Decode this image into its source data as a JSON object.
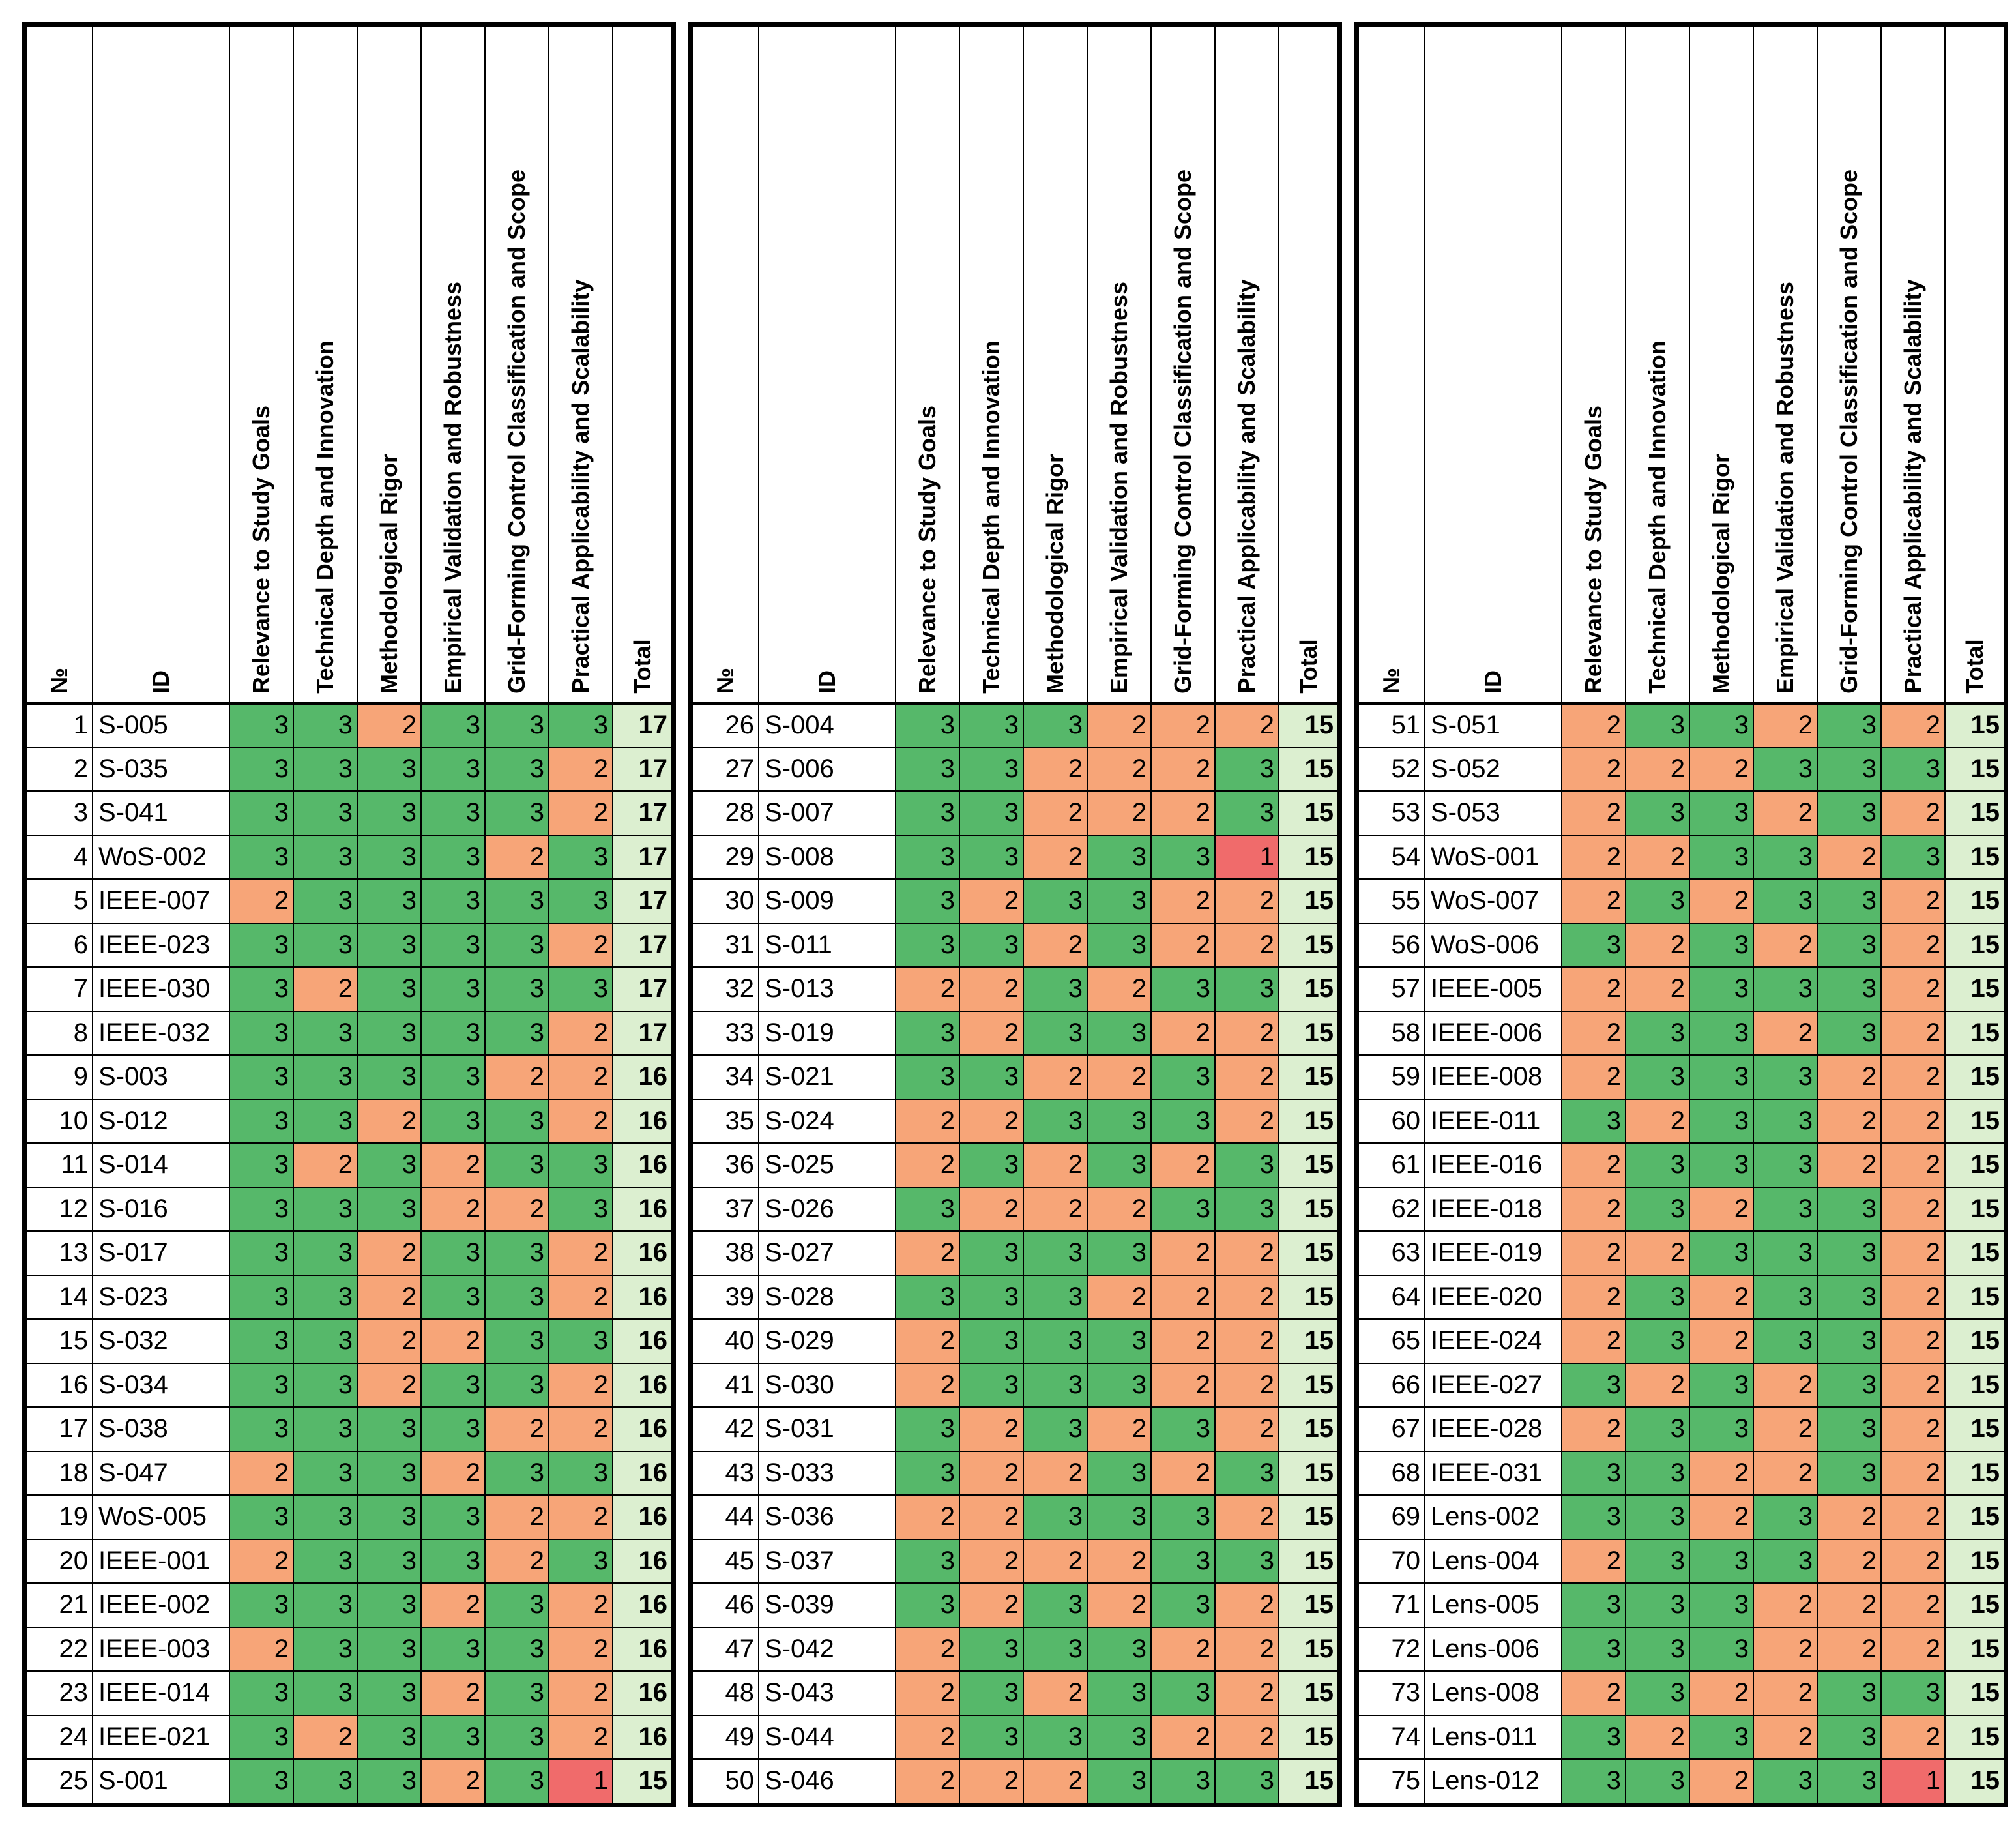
{
  "headers": {
    "no": "№",
    "id": "ID",
    "criteria": [
      "Relevance to Study Goals",
      "Technical Depth and Innovation",
      "Methodological Rigor",
      "Empirical Validation and Robustness",
      "Grid-Forming Control Classification and Scope",
      "Practical Applicability and Scalability"
    ],
    "total": "Total"
  },
  "score_colors": {
    "3": "#56b86a",
    "2": "#f7a578",
    "1": "#f06b6b",
    "total": "#dcefd0"
  },
  "tables": [
    {
      "rows": [
        {
          "no": "1",
          "id": "S-005",
          "s": [
            "3",
            "3",
            "2",
            "3",
            "3",
            "3"
          ],
          "total": "17"
        },
        {
          "no": "2",
          "id": "S-035",
          "s": [
            "3",
            "3",
            "3",
            "3",
            "3",
            "2"
          ],
          "total": "17"
        },
        {
          "no": "3",
          "id": "S-041",
          "s": [
            "3",
            "3",
            "3",
            "3",
            "3",
            "2"
          ],
          "total": "17"
        },
        {
          "no": "4",
          "id": "WoS-002",
          "s": [
            "3",
            "3",
            "3",
            "3",
            "2",
            "3"
          ],
          "total": "17"
        },
        {
          "no": "5",
          "id": "IEEE-007",
          "s": [
            "2",
            "3",
            "3",
            "3",
            "3",
            "3"
          ],
          "total": "17"
        },
        {
          "no": "6",
          "id": "IEEE-023",
          "s": [
            "3",
            "3",
            "3",
            "3",
            "3",
            "2"
          ],
          "total": "17"
        },
        {
          "no": "7",
          "id": "IEEE-030",
          "s": [
            "3",
            "2",
            "3",
            "3",
            "3",
            "3"
          ],
          "total": "17"
        },
        {
          "no": "8",
          "id": "IEEE-032",
          "s": [
            "3",
            "3",
            "3",
            "3",
            "3",
            "2"
          ],
          "total": "17"
        },
        {
          "no": "9",
          "id": "S-003",
          "s": [
            "3",
            "3",
            "3",
            "3",
            "2",
            "2"
          ],
          "total": "16"
        },
        {
          "no": "10",
          "id": "S-012",
          "s": [
            "3",
            "3",
            "2",
            "3",
            "3",
            "2"
          ],
          "total": "16"
        },
        {
          "no": "11",
          "id": "S-014",
          "s": [
            "3",
            "2",
            "3",
            "2",
            "3",
            "3"
          ],
          "total": "16"
        },
        {
          "no": "12",
          "id": "S-016",
          "s": [
            "3",
            "3",
            "3",
            "2",
            "2",
            "3"
          ],
          "total": "16"
        },
        {
          "no": "13",
          "id": "S-017",
          "s": [
            "3",
            "3",
            "2",
            "3",
            "3",
            "2"
          ],
          "total": "16"
        },
        {
          "no": "14",
          "id": "S-023",
          "s": [
            "3",
            "3",
            "2",
            "3",
            "3",
            "2"
          ],
          "total": "16"
        },
        {
          "no": "15",
          "id": "S-032",
          "s": [
            "3",
            "3",
            "2",
            "2",
            "3",
            "3"
          ],
          "total": "16"
        },
        {
          "no": "16",
          "id": "S-034",
          "s": [
            "3",
            "3",
            "2",
            "3",
            "3",
            "2"
          ],
          "total": "16"
        },
        {
          "no": "17",
          "id": "S-038",
          "s": [
            "3",
            "3",
            "3",
            "3",
            "2",
            "2"
          ],
          "total": "16"
        },
        {
          "no": "18",
          "id": "S-047",
          "s": [
            "2",
            "3",
            "3",
            "2",
            "3",
            "3"
          ],
          "total": "16"
        },
        {
          "no": "19",
          "id": "WoS-005",
          "s": [
            "3",
            "3",
            "3",
            "3",
            "2",
            "2"
          ],
          "total": "16"
        },
        {
          "no": "20",
          "id": "IEEE-001",
          "s": [
            "2",
            "3",
            "3",
            "3",
            "2",
            "3"
          ],
          "total": "16"
        },
        {
          "no": "21",
          "id": "IEEE-002",
          "s": [
            "3",
            "3",
            "3",
            "2",
            "3",
            "2"
          ],
          "total": "16"
        },
        {
          "no": "22",
          "id": "IEEE-003",
          "s": [
            "2",
            "3",
            "3",
            "3",
            "3",
            "2"
          ],
          "total": "16"
        },
        {
          "no": "23",
          "id": "IEEE-014",
          "s": [
            "3",
            "3",
            "3",
            "2",
            "3",
            "2"
          ],
          "total": "16"
        },
        {
          "no": "24",
          "id": "IEEE-021",
          "s": [
            "3",
            "2",
            "3",
            "3",
            "3",
            "2"
          ],
          "total": "16"
        },
        {
          "no": "25",
          "id": "S-001",
          "s": [
            "3",
            "3",
            "3",
            "2",
            "3",
            "1"
          ],
          "total": "15"
        }
      ]
    },
    {
      "rows": [
        {
          "no": "26",
          "id": "S-004",
          "s": [
            "3",
            "3",
            "3",
            "2",
            "2",
            "2"
          ],
          "total": "15"
        },
        {
          "no": "27",
          "id": "S-006",
          "s": [
            "3",
            "3",
            "2",
            "2",
            "2",
            "3"
          ],
          "total": "15"
        },
        {
          "no": "28",
          "id": "S-007",
          "s": [
            "3",
            "3",
            "2",
            "2",
            "2",
            "3"
          ],
          "total": "15"
        },
        {
          "no": "29",
          "id": "S-008",
          "s": [
            "3",
            "3",
            "2",
            "3",
            "3",
            "1"
          ],
          "total": "15"
        },
        {
          "no": "30",
          "id": "S-009",
          "s": [
            "3",
            "2",
            "3",
            "3",
            "2",
            "2"
          ],
          "total": "15"
        },
        {
          "no": "31",
          "id": "S-011",
          "s": [
            "3",
            "3",
            "2",
            "3",
            "2",
            "2"
          ],
          "total": "15"
        },
        {
          "no": "32",
          "id": "S-013",
          "s": [
            "2",
            "2",
            "3",
            "2",
            "3",
            "3"
          ],
          "total": "15"
        },
        {
          "no": "33",
          "id": "S-019",
          "s": [
            "3",
            "2",
            "3",
            "3",
            "2",
            "2"
          ],
          "total": "15"
        },
        {
          "no": "34",
          "id": "S-021",
          "s": [
            "3",
            "3",
            "2",
            "2",
            "3",
            "2"
          ],
          "total": "15"
        },
        {
          "no": "35",
          "id": "S-024",
          "s": [
            "2",
            "2",
            "3",
            "3",
            "3",
            "2"
          ],
          "total": "15"
        },
        {
          "no": "36",
          "id": "S-025",
          "s": [
            "2",
            "3",
            "2",
            "3",
            "2",
            "3"
          ],
          "total": "15"
        },
        {
          "no": "37",
          "id": "S-026",
          "s": [
            "3",
            "2",
            "2",
            "2",
            "3",
            "3"
          ],
          "total": "15"
        },
        {
          "no": "38",
          "id": "S-027",
          "s": [
            "2",
            "3",
            "3",
            "3",
            "2",
            "2"
          ],
          "total": "15"
        },
        {
          "no": "39",
          "id": "S-028",
          "s": [
            "3",
            "3",
            "3",
            "2",
            "2",
            "2"
          ],
          "total": "15"
        },
        {
          "no": "40",
          "id": "S-029",
          "s": [
            "2",
            "3",
            "3",
            "3",
            "2",
            "2"
          ],
          "total": "15"
        },
        {
          "no": "41",
          "id": "S-030",
          "s": [
            "2",
            "3",
            "3",
            "3",
            "2",
            "2"
          ],
          "total": "15"
        },
        {
          "no": "42",
          "id": "S-031",
          "s": [
            "3",
            "2",
            "3",
            "2",
            "3",
            "2"
          ],
          "total": "15"
        },
        {
          "no": "43",
          "id": "S-033",
          "s": [
            "3",
            "2",
            "2",
            "3",
            "2",
            "3"
          ],
          "total": "15"
        },
        {
          "no": "44",
          "id": "S-036",
          "s": [
            "2",
            "2",
            "3",
            "3",
            "3",
            "2"
          ],
          "total": "15"
        },
        {
          "no": "45",
          "id": "S-037",
          "s": [
            "3",
            "2",
            "2",
            "2",
            "3",
            "3"
          ],
          "total": "15"
        },
        {
          "no": "46",
          "id": "S-039",
          "s": [
            "3",
            "2",
            "3",
            "2",
            "3",
            "2"
          ],
          "total": "15"
        },
        {
          "no": "47",
          "id": "S-042",
          "s": [
            "2",
            "3",
            "3",
            "3",
            "2",
            "2"
          ],
          "total": "15"
        },
        {
          "no": "48",
          "id": "S-043",
          "s": [
            "2",
            "3",
            "2",
            "3",
            "3",
            "2"
          ],
          "total": "15"
        },
        {
          "no": "49",
          "id": "S-044",
          "s": [
            "2",
            "3",
            "3",
            "3",
            "2",
            "2"
          ],
          "total": "15"
        },
        {
          "no": "50",
          "id": "S-046",
          "s": [
            "2",
            "2",
            "2",
            "3",
            "3",
            "3"
          ],
          "total": "15"
        }
      ]
    },
    {
      "rows": [
        {
          "no": "51",
          "id": "S-051",
          "s": [
            "2",
            "3",
            "3",
            "2",
            "3",
            "2"
          ],
          "total": "15"
        },
        {
          "no": "52",
          "id": "S-052",
          "s": [
            "2",
            "2",
            "2",
            "3",
            "3",
            "3"
          ],
          "total": "15"
        },
        {
          "no": "53",
          "id": "S-053",
          "s": [
            "2",
            "3",
            "3",
            "2",
            "3",
            "2"
          ],
          "total": "15"
        },
        {
          "no": "54",
          "id": "WoS-001",
          "s": [
            "2",
            "2",
            "3",
            "3",
            "2",
            "3"
          ],
          "total": "15"
        },
        {
          "no": "55",
          "id": "WoS-007",
          "s": [
            "2",
            "3",
            "2",
            "3",
            "3",
            "2"
          ],
          "total": "15"
        },
        {
          "no": "56",
          "id": "WoS-006",
          "s": [
            "3",
            "2",
            "3",
            "2",
            "3",
            "2"
          ],
          "total": "15"
        },
        {
          "no": "57",
          "id": "IEEE-005",
          "s": [
            "2",
            "2",
            "3",
            "3",
            "3",
            "2"
          ],
          "total": "15"
        },
        {
          "no": "58",
          "id": "IEEE-006",
          "s": [
            "2",
            "3",
            "3",
            "2",
            "3",
            "2"
          ],
          "total": "15"
        },
        {
          "no": "59",
          "id": "IEEE-008",
          "s": [
            "2",
            "3",
            "3",
            "3",
            "2",
            "2"
          ],
          "total": "15"
        },
        {
          "no": "60",
          "id": "IEEE-011",
          "s": [
            "3",
            "2",
            "3",
            "3",
            "2",
            "2"
          ],
          "total": "15"
        },
        {
          "no": "61",
          "id": "IEEE-016",
          "s": [
            "2",
            "3",
            "3",
            "3",
            "2",
            "2"
          ],
          "total": "15"
        },
        {
          "no": "62",
          "id": "IEEE-018",
          "s": [
            "2",
            "3",
            "2",
            "3",
            "3",
            "2"
          ],
          "total": "15"
        },
        {
          "no": "63",
          "id": "IEEE-019",
          "s": [
            "2",
            "2",
            "3",
            "3",
            "3",
            "2"
          ],
          "total": "15"
        },
        {
          "no": "64",
          "id": "IEEE-020",
          "s": [
            "2",
            "3",
            "2",
            "3",
            "3",
            "2"
          ],
          "total": "15"
        },
        {
          "no": "65",
          "id": "IEEE-024",
          "s": [
            "2",
            "3",
            "2",
            "3",
            "3",
            "2"
          ],
          "total": "15"
        },
        {
          "no": "66",
          "id": "IEEE-027",
          "s": [
            "3",
            "2",
            "3",
            "2",
            "3",
            "2"
          ],
          "total": "15"
        },
        {
          "no": "67",
          "id": "IEEE-028",
          "s": [
            "2",
            "3",
            "3",
            "2",
            "3",
            "2"
          ],
          "total": "15"
        },
        {
          "no": "68",
          "id": "IEEE-031",
          "s": [
            "3",
            "3",
            "2",
            "2",
            "3",
            "2"
          ],
          "total": "15"
        },
        {
          "no": "69",
          "id": "Lens-002",
          "s": [
            "3",
            "3",
            "2",
            "3",
            "2",
            "2"
          ],
          "total": "15"
        },
        {
          "no": "70",
          "id": "Lens-004",
          "s": [
            "2",
            "3",
            "3",
            "3",
            "2",
            "2"
          ],
          "total": "15"
        },
        {
          "no": "71",
          "id": "Lens-005",
          "s": [
            "3",
            "3",
            "3",
            "2",
            "2",
            "2"
          ],
          "total": "15"
        },
        {
          "no": "72",
          "id": "Lens-006",
          "s": [
            "3",
            "3",
            "3",
            "2",
            "2",
            "2"
          ],
          "total": "15"
        },
        {
          "no": "73",
          "id": "Lens-008",
          "s": [
            "2",
            "3",
            "2",
            "2",
            "3",
            "3"
          ],
          "total": "15"
        },
        {
          "no": "74",
          "id": "Lens-011",
          "s": [
            "3",
            "2",
            "3",
            "2",
            "3",
            "2"
          ],
          "total": "15"
        },
        {
          "no": "75",
          "id": "Lens-012",
          "s": [
            "3",
            "3",
            "2",
            "3",
            "3",
            "1"
          ],
          "total": "15"
        }
      ]
    }
  ]
}
